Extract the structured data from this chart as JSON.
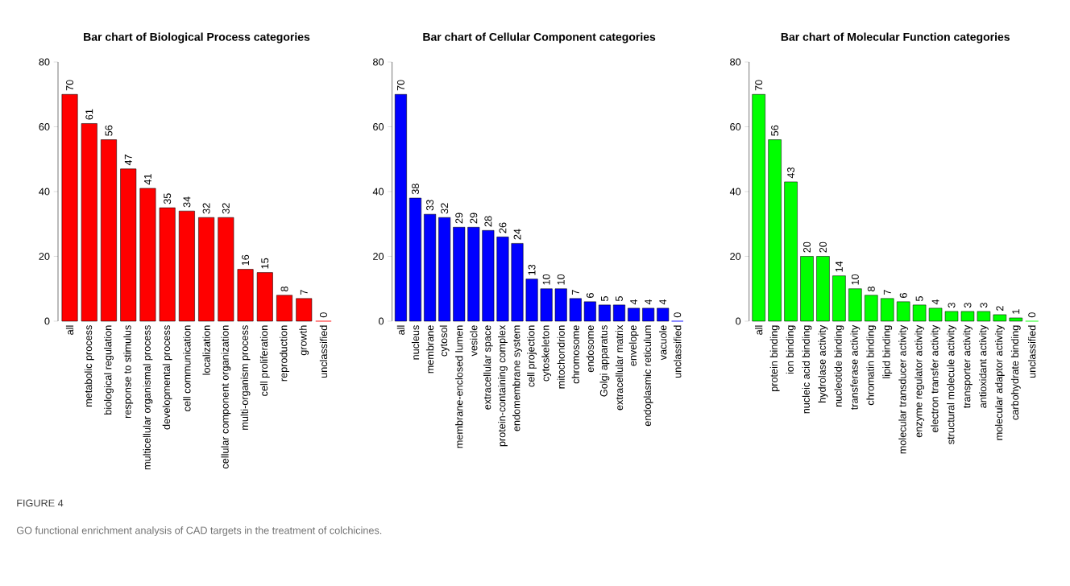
{
  "chart_data": [
    {
      "type": "bar",
      "title": "Bar chart of Biological Process categories",
      "categories": [
        "all",
        "metabolic process",
        "biological regulation",
        "response to stimulus",
        "multicellular organismal process",
        "developmental process",
        "cell communication",
        "localization",
        "cellular component organization",
        "multi-organism process",
        "cell proliferation",
        "reproduction",
        "growth",
        "unclassified"
      ],
      "values": [
        70,
        61,
        56,
        47,
        41,
        35,
        34,
        32,
        32,
        16,
        15,
        8,
        7,
        0
      ],
      "color": "#ff0000",
      "ylim": [
        0,
        80
      ],
      "yticks": [
        0,
        20,
        40,
        60,
        80
      ],
      "data_labels": true,
      "annotations": [
        "FIGURE 4",
        "GO functional enrichment analysis of CAD targets in the treatment of colchicines."
      ]
    },
    {
      "type": "bar",
      "title": "Bar chart of Cellular Component categories",
      "categories": [
        "all",
        "nucleus",
        "membrane",
        "cytosol",
        "membrane-enclosed lumen",
        "vesicle",
        "extracellular space",
        "protein-containing complex",
        "endomembrane system",
        "cell projection",
        "cytoskeleton",
        "mitochondrion",
        "chromosome",
        "endosome",
        "Golgi apparatus",
        "extracellular matrix",
        "envelope",
        "endoplasmic reticulum",
        "vacuole",
        "unclassified"
      ],
      "values": [
        70,
        38,
        33,
        32,
        29,
        29,
        28,
        26,
        24,
        13,
        10,
        10,
        7,
        6,
        5,
        5,
        4,
        4,
        4,
        0
      ],
      "color": "#0000ff",
      "ylim": [
        0,
        80
      ],
      "yticks": [
        0,
        20,
        40,
        60,
        80
      ],
      "data_labels": true
    },
    {
      "type": "bar",
      "title": "Bar chart of Molecular Function categories",
      "categories": [
        "all",
        "protein binding",
        "ion binding",
        "nucleic acid binding",
        "hydrolase activity",
        "nucleotide binding",
        "transferase activity",
        "chromatin binding",
        "lipid binding",
        "molecular transducer activity",
        "enzyme regulator activity",
        "electron transfer activity",
        "structural molecule activity",
        "transporter activity",
        "antioxidant activity",
        "molecular adaptor activity",
        "carbohydrate binding",
        "unclassified"
      ],
      "values": [
        70,
        56,
        43,
        20,
        20,
        14,
        10,
        8,
        7,
        6,
        5,
        4,
        3,
        3,
        3,
        2,
        1,
        0
      ],
      "color": "#00ff00",
      "ylim": [
        0,
        80
      ],
      "yticks": [
        0,
        20,
        40,
        60,
        80
      ],
      "data_labels": true
    }
  ]
}
